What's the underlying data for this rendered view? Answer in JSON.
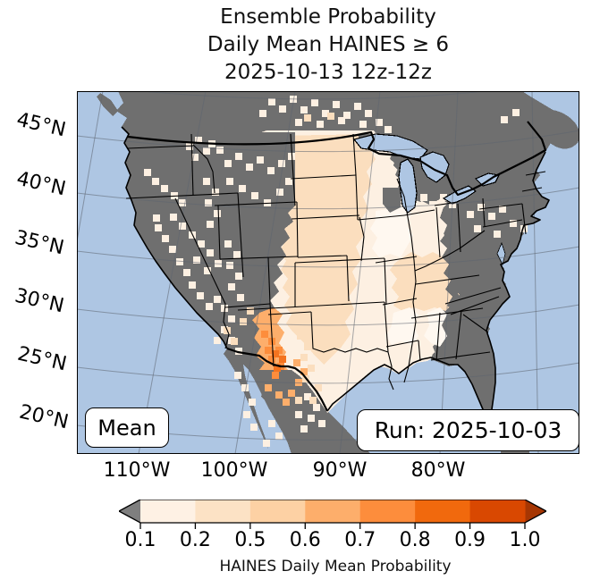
{
  "title_lines": [
    "Ensemble Probability",
    "Daily Mean HAINES ≥ 6",
    "2025-10-13 12z-12z"
  ],
  "map": {
    "label_mean": "Mean",
    "label_run": "Run: 2025-10-03",
    "x_tick_labels": [
      "110°W",
      "100°W",
      "90°W",
      "80°W"
    ],
    "y_tick_labels": [
      "45°N",
      "40°N",
      "35°N",
      "30°N",
      "25°N",
      "20°N"
    ],
    "colors": {
      "ocean": "#aec6e3",
      "masked_land": "#6f6f6f",
      "state_border": "#000000"
    }
  },
  "colorbar": {
    "caption": "HAINES Daily Mean Probability",
    "tick_labels": [
      "0.1",
      "0.2",
      "0.5",
      "0.6",
      "0.7",
      "0.8",
      "0.9",
      "1.0"
    ],
    "segment_colors": [
      "#fef1e4",
      "#fce2c5",
      "#fdd1a4",
      "#fdae6b",
      "#fd8d3c",
      "#f1690d",
      "#d94801"
    ],
    "under_arrow_color": "#7f7f7f",
    "over_arrow_color": "#a63603"
  }
}
